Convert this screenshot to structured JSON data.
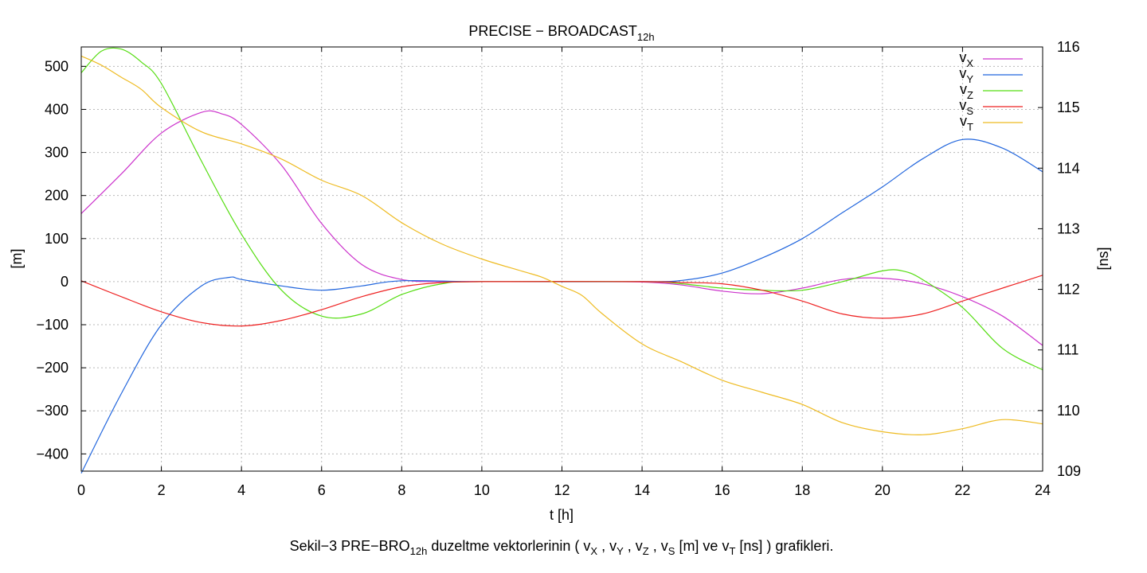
{
  "chart_data": {
    "type": "line",
    "title": {
      "main": "PRECISE − BROADCAST",
      "sub": "12h"
    },
    "xlabel": "t [h]",
    "ylabel": "[m]",
    "y2label": "[ns]",
    "xlim": [
      0,
      24
    ],
    "ylim": [
      -440,
      545
    ],
    "y2lim": [
      109,
      116
    ],
    "xticks": [
      0,
      2,
      4,
      6,
      8,
      10,
      12,
      14,
      16,
      18,
      20,
      22,
      24
    ],
    "yticks": [
      -400,
      -300,
      -200,
      -100,
      0,
      100,
      200,
      300,
      400,
      500
    ],
    "y2ticks": [
      109,
      110,
      111,
      112,
      113,
      114,
      115,
      116
    ],
    "tick_labels": {
      "x": [
        "0",
        "2",
        "4",
        "6",
        "8",
        "10",
        "12",
        "14",
        "16",
        "18",
        "20",
        "22",
        "24"
      ],
      "y": [
        "−400",
        "−300",
        "−200",
        "−100",
        "0",
        "100",
        "200",
        "300",
        "400",
        "500"
      ],
      "y2": [
        "109",
        "110",
        "111",
        "112",
        "113",
        "114",
        "115",
        "116"
      ]
    },
    "grid": true,
    "legend_position": "top-right",
    "series": [
      {
        "name": "vX",
        "label_main": "v",
        "label_sub": "X",
        "axis": "left",
        "color": "#cc33cc",
        "x": [
          0,
          1,
          2,
          3,
          3.5,
          4,
          5,
          6,
          7,
          8,
          9,
          10,
          12,
          14,
          15,
          16,
          17,
          18,
          19,
          20,
          21,
          22,
          23,
          24
        ],
        "y": [
          158,
          250,
          345,
          393,
          390,
          365,
          270,
          135,
          40,
          5,
          0,
          0,
          0,
          -1,
          -8,
          -22,
          -28,
          -15,
          5,
          8,
          -5,
          -35,
          -80,
          -148
        ]
      },
      {
        "name": "vY",
        "label_main": "v",
        "label_sub": "Y",
        "axis": "left",
        "color": "#2266dd",
        "x": [
          0,
          1,
          2,
          3,
          3.7,
          4,
          5,
          6,
          7,
          8,
          10,
          14,
          15,
          16,
          17,
          18,
          19,
          20,
          21,
          22,
          23,
          24
        ],
        "y": [
          -445,
          -260,
          -100,
          -10,
          10,
          5,
          -10,
          -20,
          -10,
          2,
          0,
          0,
          3,
          20,
          55,
          100,
          160,
          220,
          285,
          330,
          310,
          255
        ]
      },
      {
        "name": "vZ",
        "label_main": "v",
        "label_sub": "Z",
        "axis": "left",
        "color": "#55dd11",
        "x": [
          0,
          0.5,
          1,
          1.5,
          2,
          3,
          4,
          5,
          6,
          7,
          8,
          9,
          10,
          14,
          15,
          16,
          17,
          18,
          19,
          20,
          20.5,
          21,
          22,
          23,
          24
        ],
        "y": [
          485,
          535,
          540,
          510,
          460,
          280,
          110,
          -20,
          -80,
          -75,
          -30,
          -5,
          0,
          0,
          -5,
          -15,
          -20,
          -20,
          0,
          25,
          25,
          5,
          -60,
          -155,
          -205
        ]
      },
      {
        "name": "vS",
        "label_main": "v",
        "label_sub": "S",
        "axis": "left",
        "color": "#ee2222",
        "x": [
          0,
          1,
          2,
          3,
          4,
          5,
          6,
          7,
          8,
          9,
          10,
          14,
          15,
          16,
          17,
          18,
          19,
          20,
          21,
          22,
          23,
          24
        ],
        "y": [
          2,
          -35,
          -70,
          -95,
          -103,
          -90,
          -65,
          -35,
          -12,
          -2,
          0,
          0,
          -2,
          -5,
          -20,
          -45,
          -75,
          -85,
          -75,
          -45,
          -15,
          15
        ]
      },
      {
        "name": "vT",
        "label_main": "v",
        "label_sub": "T",
        "axis": "right",
        "color": "#eebb22",
        "x": [
          0,
          0.5,
          1,
          1.5,
          2,
          3,
          4,
          5,
          6,
          7,
          8,
          9,
          10,
          11,
          11.5,
          12,
          12.5,
          13,
          14,
          15,
          16,
          17,
          18,
          19,
          20,
          21,
          22,
          23,
          24
        ],
        "y": [
          115.85,
          115.7,
          115.5,
          115.3,
          115.0,
          114.6,
          114.4,
          114.15,
          113.8,
          113.55,
          113.1,
          112.75,
          112.5,
          112.3,
          112.2,
          112.05,
          111.9,
          111.6,
          111.1,
          110.8,
          110.5,
          110.3,
          110.1,
          109.8,
          109.65,
          109.6,
          109.7,
          109.85,
          109.78
        ]
      }
    ]
  },
  "caption": {
    "parts": [
      {
        "text": "Sekil−3 PRE−BRO"
      },
      {
        "text": "12h",
        "sub": true
      },
      {
        "text": " duzeltme vektorlerinin ( v"
      },
      {
        "text": "X",
        "sub": true
      },
      {
        "text": " , v"
      },
      {
        "text": "Y",
        "sub": true
      },
      {
        "text": " , v"
      },
      {
        "text": "Z",
        "sub": true
      },
      {
        "text": " , v"
      },
      {
        "text": "S",
        "sub": true
      },
      {
        "text": " [m] ve v"
      },
      {
        "text": "T",
        "sub": true
      },
      {
        "text": " [ns] ) grafikleri."
      }
    ]
  }
}
